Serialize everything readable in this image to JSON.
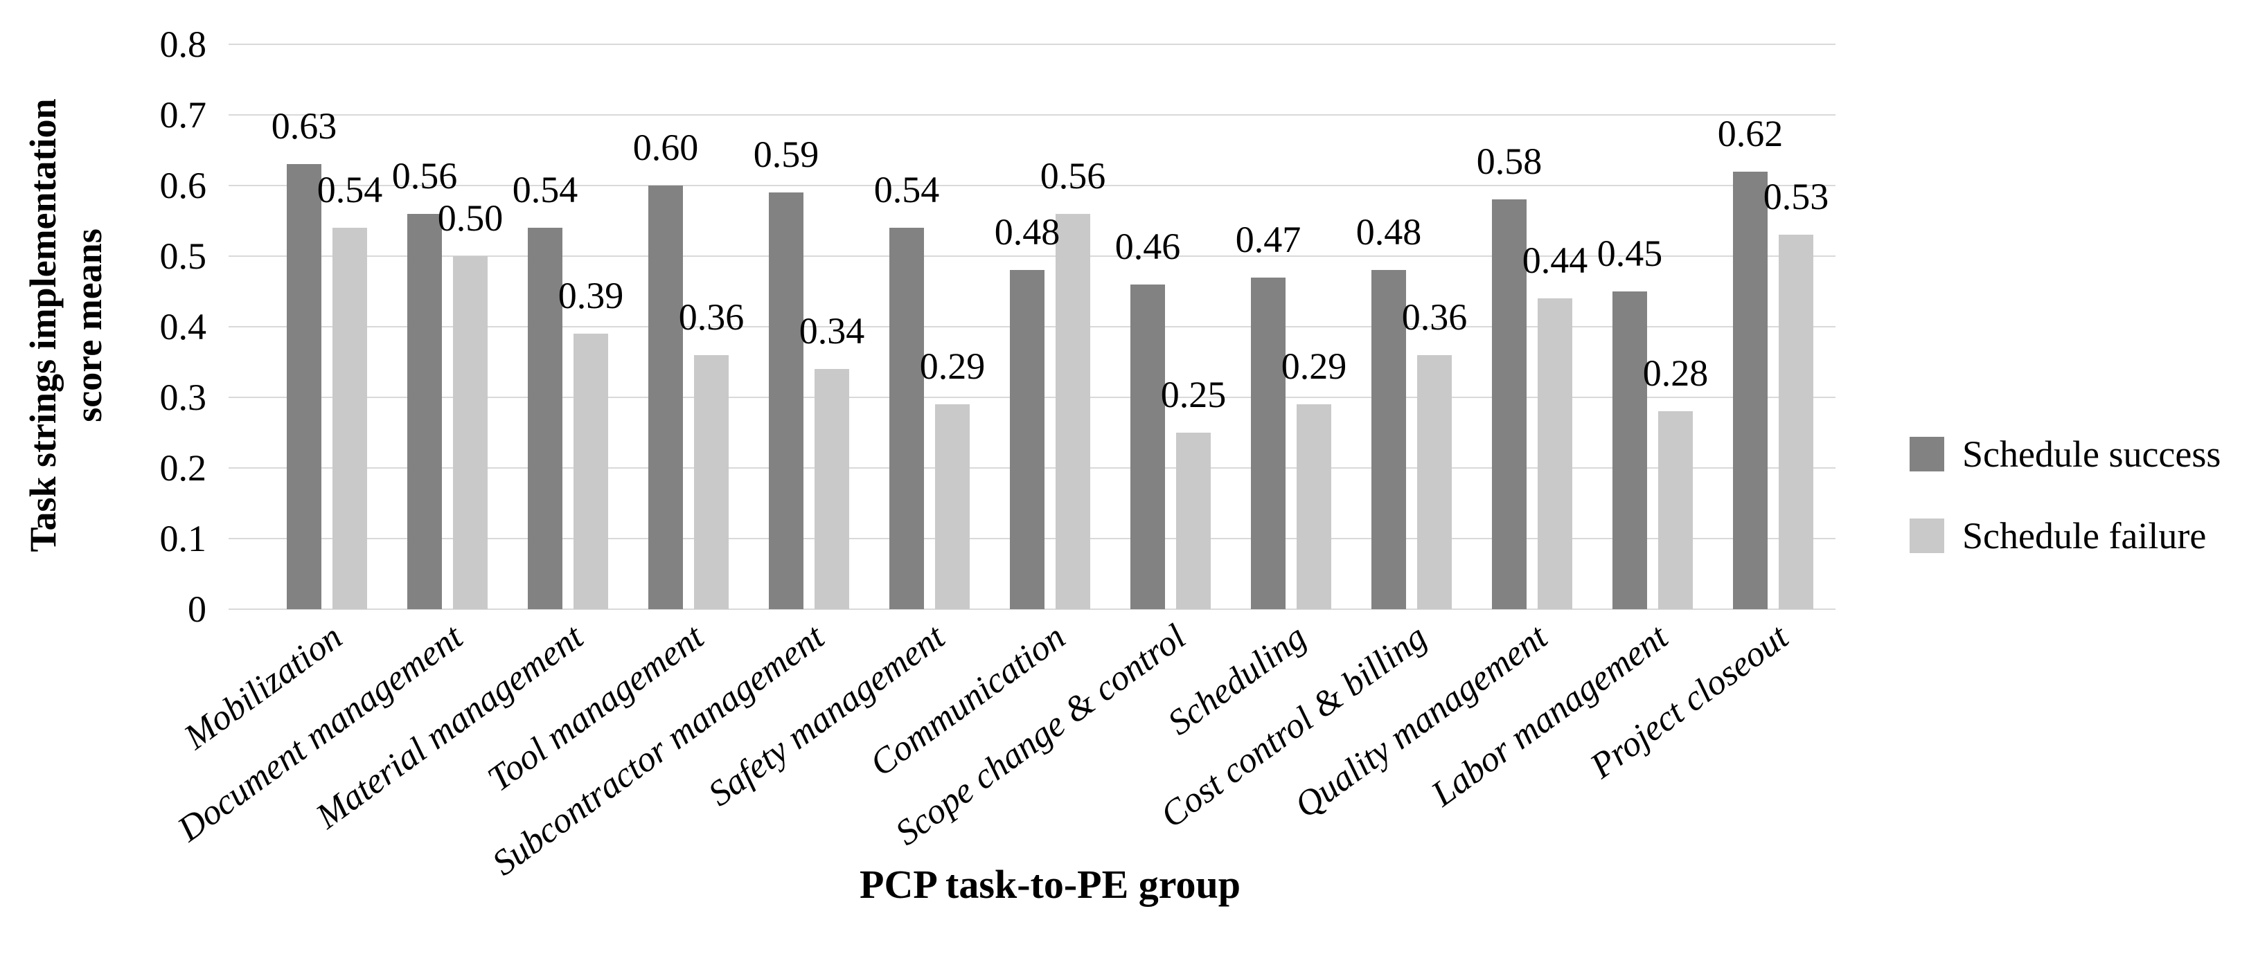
{
  "chart_data": {
    "type": "bar",
    "title": "",
    "categories": [
      "Mobilization",
      "Document management",
      "Material management",
      "Tool management",
      "Subcontractor management",
      "Safety management",
      "Communication",
      "Scope change & control",
      "Scheduling",
      "Cost control & billing",
      "Quality management",
      "Labor management",
      "Project closeout"
    ],
    "series": [
      {
        "name": "Schedule success",
        "color": "#828282",
        "values": [
          0.63,
          0.56,
          0.54,
          0.6,
          0.59,
          0.54,
          0.48,
          0.46,
          0.47,
          0.48,
          0.58,
          0.45,
          0.62
        ],
        "labels": [
          "0.63",
          "0.56",
          "0.54",
          "0.60",
          "0.59",
          "0.54",
          "0.48",
          "0.46",
          "0.47",
          "0.48",
          "0.58",
          "0.45",
          "0.62"
        ]
      },
      {
        "name": "Schedule failure",
        "color": "#c9c9c9",
        "values": [
          0.54,
          0.5,
          0.39,
          0.36,
          0.34,
          0.29,
          0.56,
          0.25,
          0.29,
          0.36,
          0.44,
          0.28,
          0.53
        ],
        "labels": [
          "0.54",
          "0.50",
          "0.39",
          "0.36",
          "0.34",
          "0.29",
          "0.56",
          "0.25",
          "0.29",
          "0.36",
          "0.44",
          "0.28",
          "0.53"
        ]
      }
    ],
    "xlabel": "PCP task-to-PE group",
    "ylabel_lines": [
      "Task strings implementation",
      "score means"
    ],
    "ylim": [
      0,
      0.8
    ],
    "y_ticks": [
      "0.8",
      "0.7",
      "0.6",
      "0.5",
      "0.4",
      "0.3",
      "0.2",
      "0.1",
      "0"
    ],
    "grid": true,
    "legend_position": "right",
    "colors": {
      "gridline": "#d9d9d9",
      "text": "#000000",
      "background": "#ffffff"
    }
  }
}
